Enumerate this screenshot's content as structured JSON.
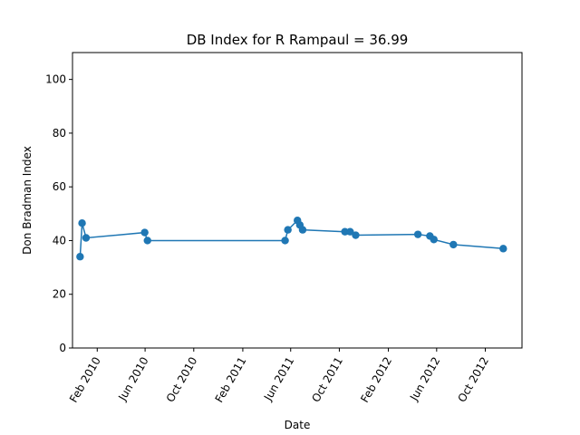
{
  "chart_data": {
    "type": "line",
    "title": "DB Index for R Rampaul = 36.99",
    "xlabel": "Date",
    "ylabel": "Don Bradman Index",
    "ylim": [
      0,
      110
    ],
    "xlim": [
      "2009-12-01",
      "2013-01-01"
    ],
    "yticks": [
      0,
      20,
      40,
      60,
      80,
      100
    ],
    "xticks": [
      {
        "date": "2010-02-01",
        "label": "Feb 2010"
      },
      {
        "date": "2010-06-01",
        "label": "Jun 2010"
      },
      {
        "date": "2010-10-01",
        "label": "Oct 2010"
      },
      {
        "date": "2011-02-01",
        "label": "Feb 2011"
      },
      {
        "date": "2011-06-01",
        "label": "Jun 2011"
      },
      {
        "date": "2011-10-01",
        "label": "Oct 2011"
      },
      {
        "date": "2012-02-01",
        "label": "Feb 2012"
      },
      {
        "date": "2012-06-01",
        "label": "Jun 2012"
      },
      {
        "date": "2012-10-01",
        "label": "Oct 2012"
      }
    ],
    "series": [
      {
        "color": "#1f77b4",
        "points": [
          {
            "x": "2009-12-20",
            "y": 34.0
          },
          {
            "x": "2009-12-25",
            "y": 46.5
          },
          {
            "x": "2010-01-04",
            "y": 41.0
          },
          {
            "x": "2010-05-31",
            "y": 43.0
          },
          {
            "x": "2010-06-07",
            "y": 40.0
          },
          {
            "x": "2011-05-18",
            "y": 40.0
          },
          {
            "x": "2011-05-25",
            "y": 44.0
          },
          {
            "x": "2011-06-18",
            "y": 47.5
          },
          {
            "x": "2011-06-24",
            "y": 45.8
          },
          {
            "x": "2011-07-01",
            "y": 44.0
          },
          {
            "x": "2011-10-15",
            "y": 43.3
          },
          {
            "x": "2011-10-28",
            "y": 43.3
          },
          {
            "x": "2011-11-11",
            "y": 42.0
          },
          {
            "x": "2012-04-15",
            "y": 42.3
          },
          {
            "x": "2012-05-15",
            "y": 41.7
          },
          {
            "x": "2012-05-25",
            "y": 40.4
          },
          {
            "x": "2012-07-13",
            "y": 38.5
          },
          {
            "x": "2012-11-15",
            "y": 37.0
          }
        ]
      }
    ]
  }
}
